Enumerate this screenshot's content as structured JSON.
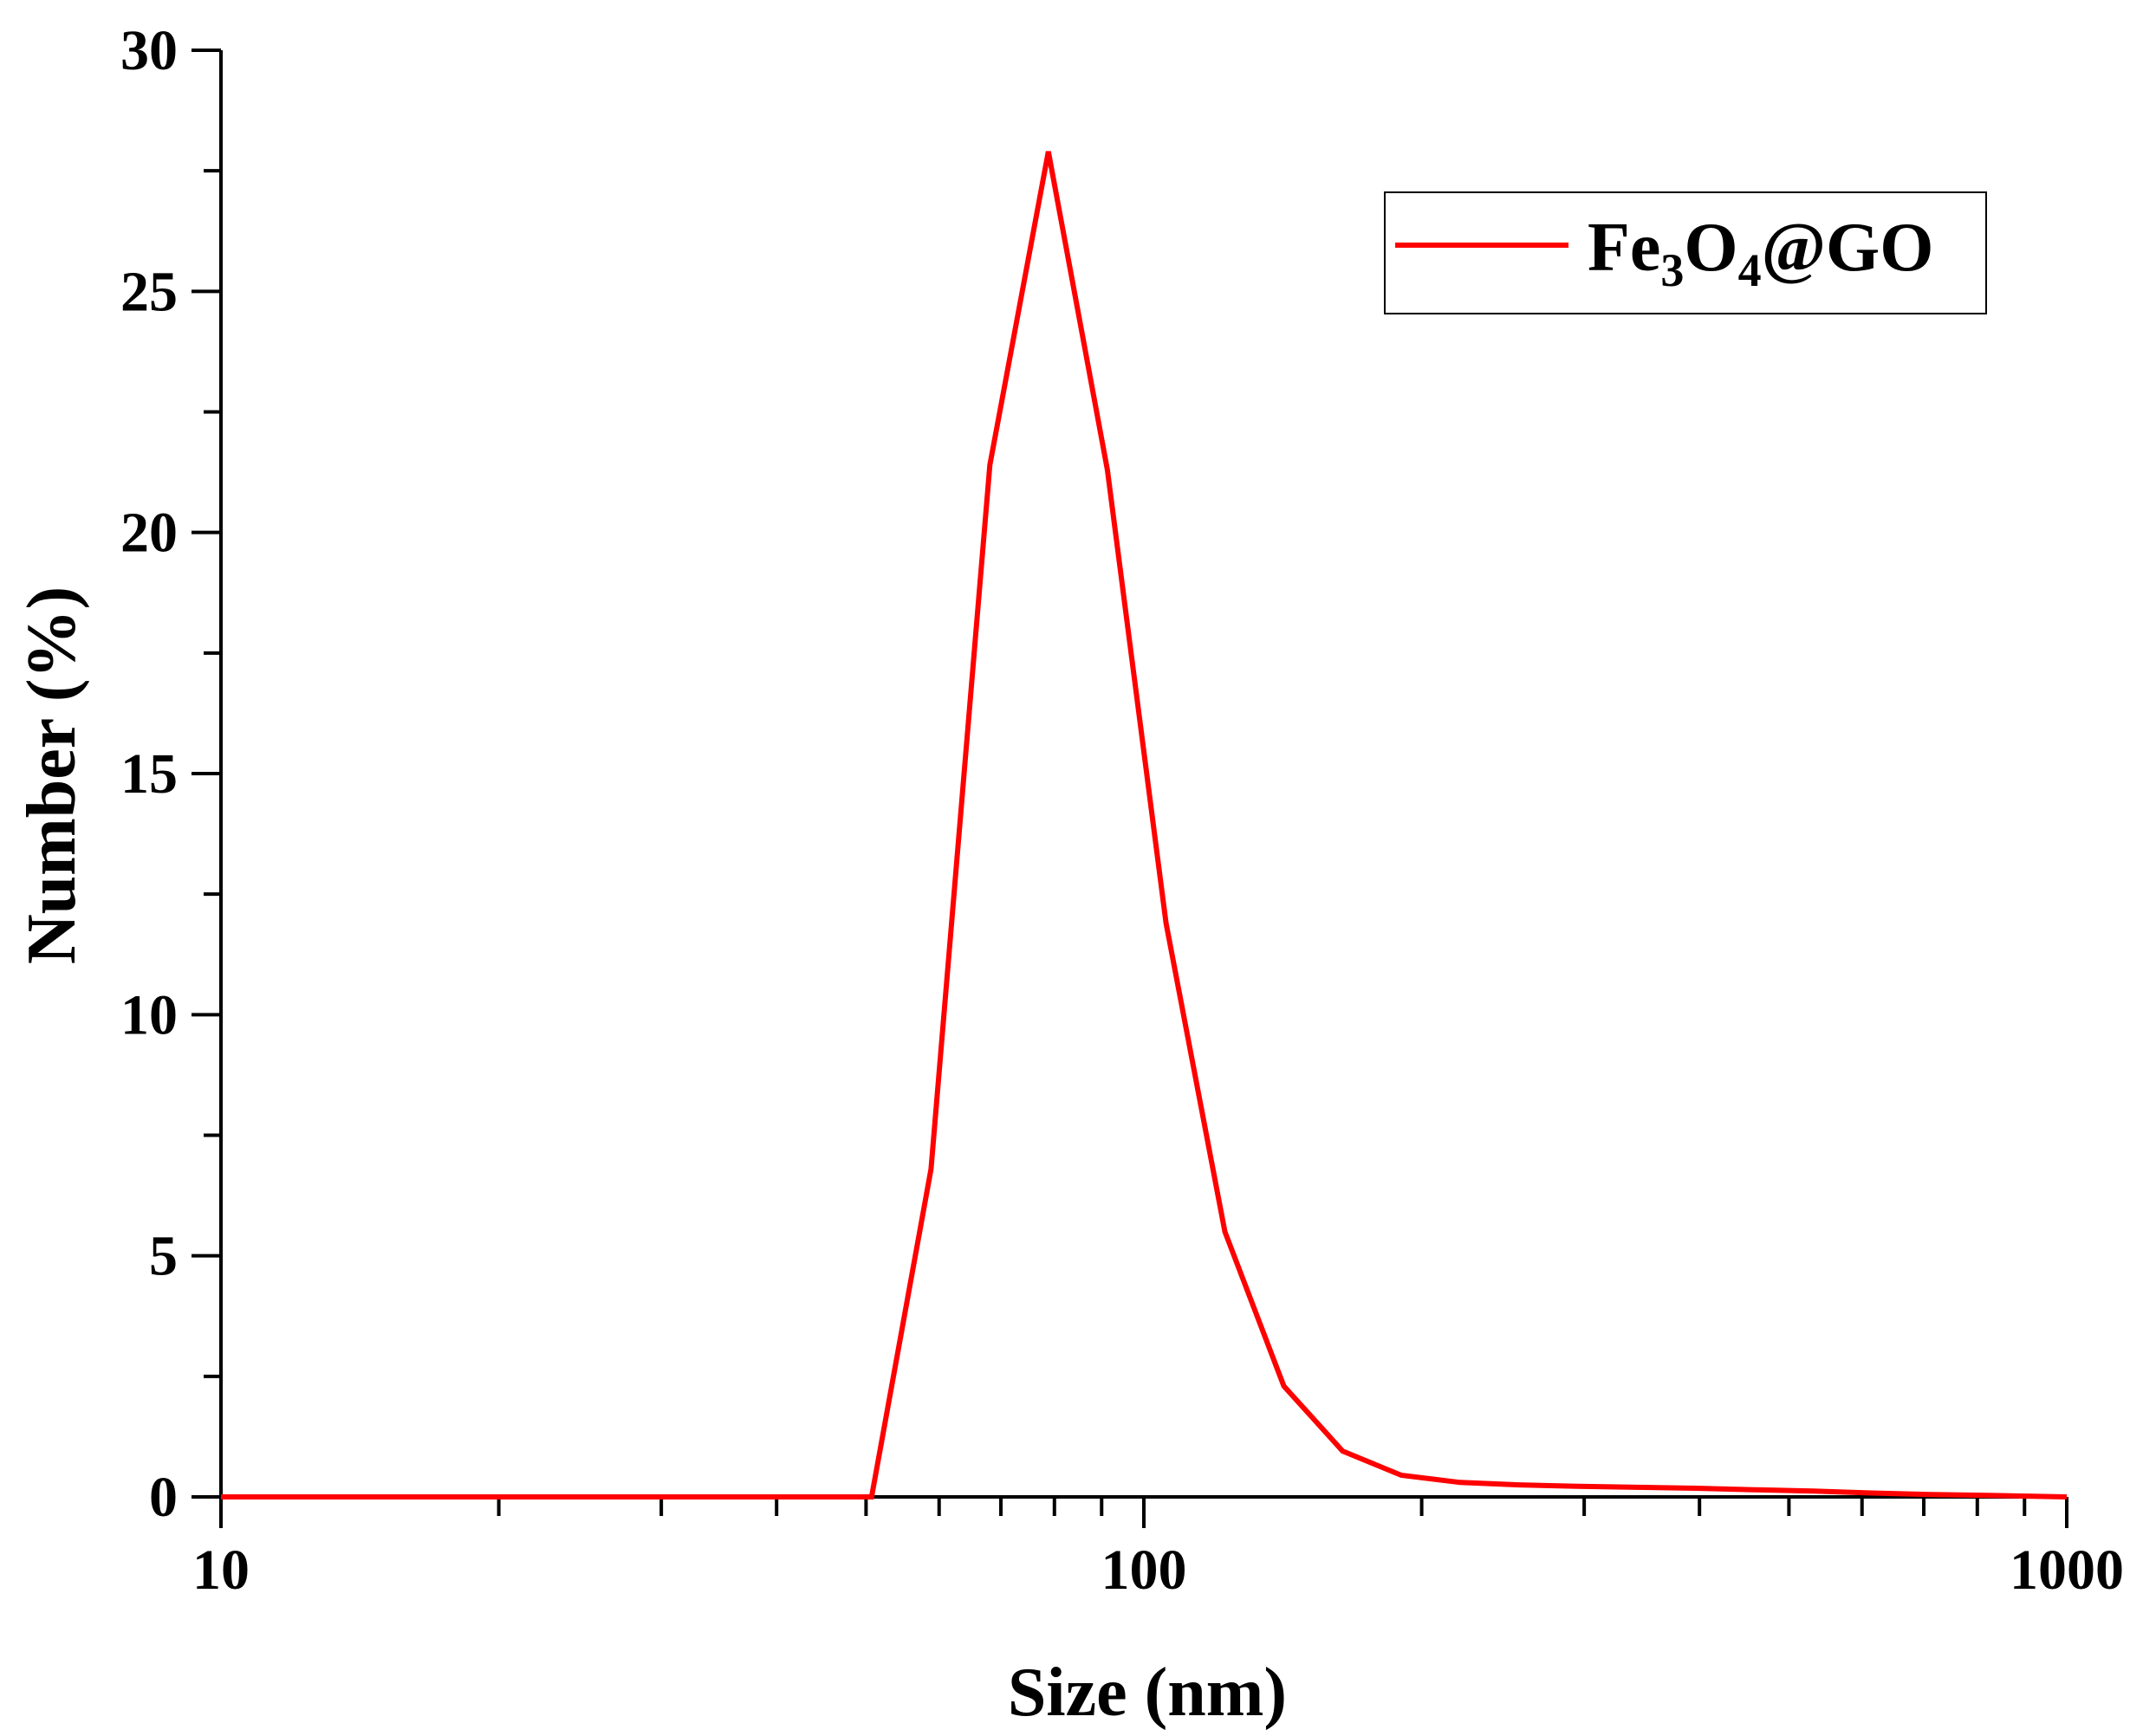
{
  "chart_data": {
    "type": "line",
    "title": "",
    "xlabel": "Size (nm)",
    "ylabel": "Number (%)",
    "xscale": "log",
    "xlim": [
      10,
      1000
    ],
    "ylim": [
      0,
      30
    ],
    "xticks": [
      10,
      100,
      1000
    ],
    "xtick_labels": [
      "10",
      "100",
      "1000"
    ],
    "yticks": [
      0,
      5,
      10,
      15,
      20,
      25,
      30
    ],
    "ytick_labels": [
      "0",
      "5",
      "10",
      "15",
      "20",
      "25",
      "30"
    ],
    "grid": false,
    "legend_position": "top-right",
    "legend": {
      "parts": [
        "Fe",
        "3",
        "O",
        "4",
        "@GO"
      ]
    },
    "series": [
      {
        "name": "Fe3O4@GO",
        "color": "#ff0000",
        "x": [
          10,
          20,
          30,
          40,
          50.7,
          58.8,
          68.1,
          78.8,
          91.3,
          105.7,
          122.4,
          141.8,
          164.2,
          190.1,
          220.2,
          255,
          295.3,
          342,
          396.1,
          458.7,
          531.2,
          615.1,
          712.4,
          825,
          1000
        ],
        "y": [
          0,
          0,
          0,
          0,
          0,
          6.8,
          21.4,
          27.9,
          21.3,
          11.9,
          5.5,
          2.3,
          0.95,
          0.45,
          0.3,
          0.25,
          0.22,
          0.2,
          0.18,
          0.15,
          0.12,
          0.08,
          0.05,
          0.03,
          0
        ]
      }
    ]
  }
}
